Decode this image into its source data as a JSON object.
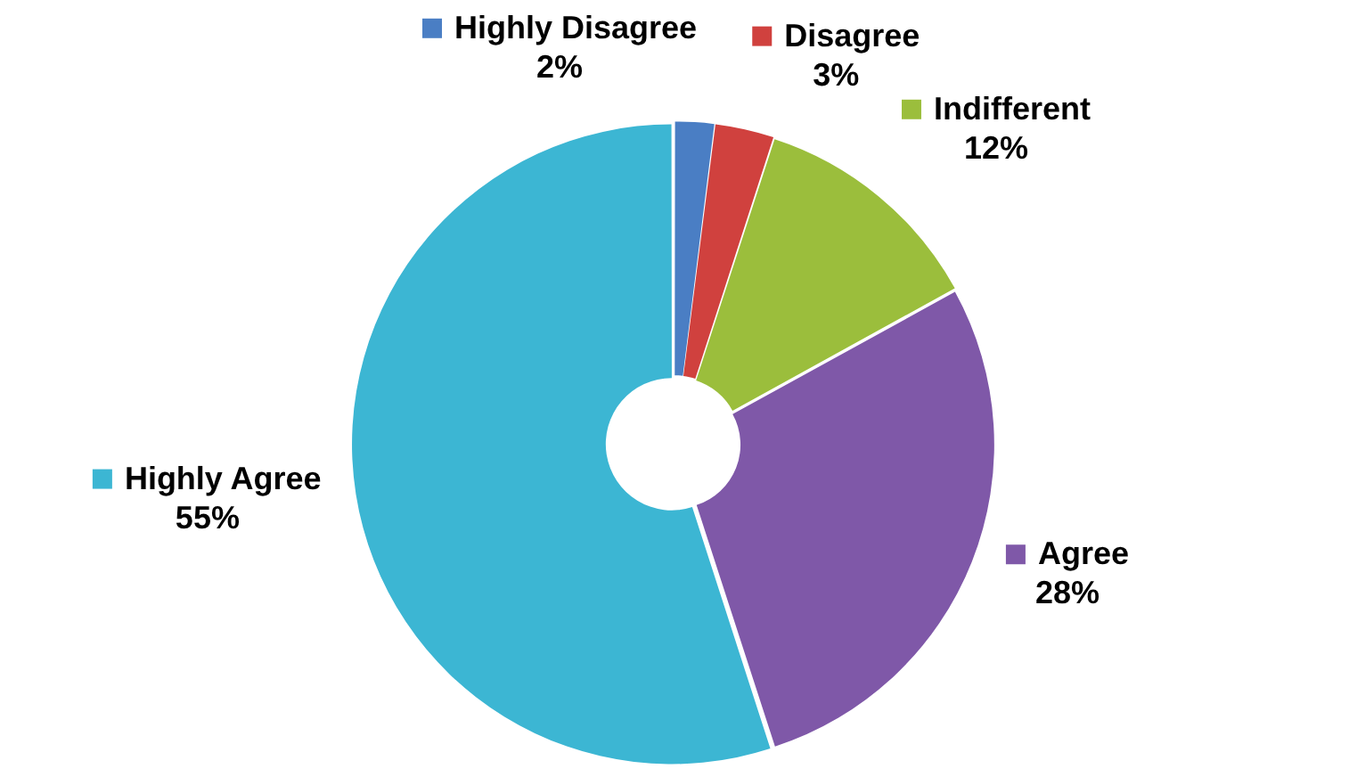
{
  "chart_data": {
    "type": "donut",
    "categories": [
      "Highly Disagree",
      "Disagree",
      "Indifferent",
      "Agree",
      "Highly Agree"
    ],
    "values": [
      2,
      3,
      12,
      28,
      55
    ],
    "value_labels": [
      "2%",
      "3%",
      "12%",
      "28%",
      "55%"
    ],
    "colors": [
      "#4a7ec4",
      "#d0413e",
      "#9bbe3c",
      "#7f58a8",
      "#3cb6d3"
    ],
    "legend": "top"
  }
}
